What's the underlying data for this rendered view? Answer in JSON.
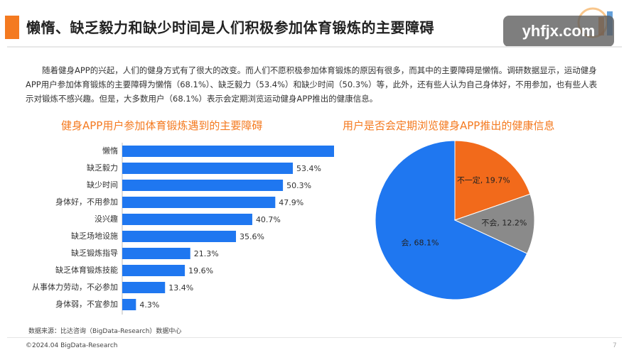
{
  "header": {
    "title": "懒惰、缺乏毅力和缺少时间是人们积极参加体育锻炼的主要障碍",
    "watermark": "yhfjx.com"
  },
  "intro": "随着健身APP的兴起，人们的健身方式有了很大的改变。而人们不愿积极参加体育锻炼的原因有很多，而其中的主要障碍是懒惰。调研数据显示，运动健身APP用户参加体育锻炼的主要障碍为懒惰（68.1%）、缺乏毅力（53.4%）和缺少时间（50.3%）等，此外，还有些人认为自己身体好，不用参加，也有些人表示对锻炼不感兴趣。但是，大多数用户（68.1%）表示会定期浏览运动健身APP推出的健康信息。",
  "colors": {
    "accent": "#f47a20",
    "bar": "#1f77f0",
    "pie_blue": "#1f77f0",
    "pie_orange": "#f26a1b",
    "pie_gray": "#8a8a8a"
  },
  "chart_data": [
    {
      "type": "bar",
      "orientation": "horizontal",
      "title": "健身APP用户参加体育锻炼遇到的主要障碍",
      "categories": [
        "懒惰",
        "缺乏毅力",
        "缺少时间",
        "身体好，不用参加",
        "没兴趣",
        "缺乏场地设施",
        "缺乏锻炼指导",
        "缺乏体育锻炼技能",
        "从事体力劳动，不必参加",
        "身体弱，不宜参加"
      ],
      "values": [
        68.1,
        53.4,
        50.3,
        47.9,
        40.7,
        35.6,
        21.3,
        19.6,
        13.4,
        4.3
      ],
      "labels": [
        "68.1%",
        "53.4%",
        "50.3%",
        "47.9%",
        "40.7%",
        "35.6%",
        "21.3%",
        "19.6%",
        "13.4%",
        "4.3%"
      ],
      "xlim": [
        0,
        100
      ],
      "grid": false
    },
    {
      "type": "pie",
      "title": "用户是否会定期浏览健身APP推出的健康信息",
      "slices": [
        {
          "label": "会, 68.1%",
          "value": 68.1
        },
        {
          "label": "不一定, 19.7%",
          "value": 19.7
        },
        {
          "label": "不会, 12.2%",
          "value": 12.2
        }
      ]
    }
  ],
  "footer": {
    "source": "数据来源：比达咨询（BigData-Research）数据中心",
    "copyright": "©2024.04 BigData-Research",
    "page": "7"
  }
}
